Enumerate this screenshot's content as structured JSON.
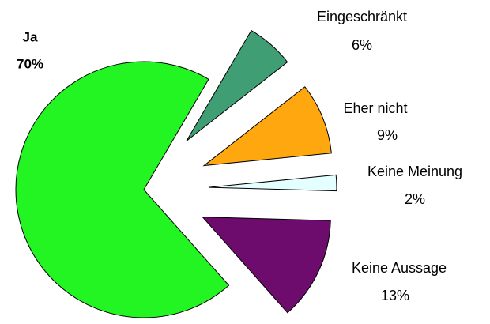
{
  "chart_data": {
    "type": "pie",
    "categories": [
      "Ja",
      "Eingeschränkt",
      "Eher nicht",
      "Keine Meinung",
      "Keine Aussage"
    ],
    "values": [
      70,
      6,
      9,
      2,
      13
    ],
    "value_labels": [
      "70%",
      "6%",
      "9%",
      "2%",
      "13%"
    ],
    "colors": [
      "#22f522",
      "#3f9e74",
      "#ffa70f",
      "#e4ffff",
      "#6e0c6e"
    ],
    "exploded": [
      false,
      true,
      true,
      true,
      true
    ]
  }
}
